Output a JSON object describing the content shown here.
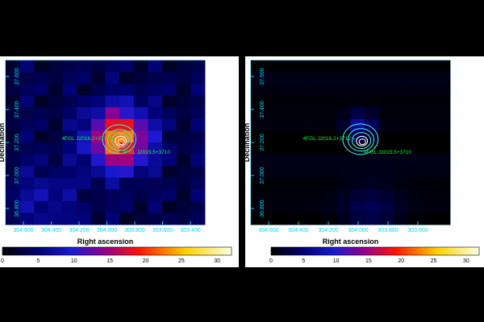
{
  "chart_data": [
    {
      "type": "heatmap",
      "panel": "left",
      "xlabel": "Right ascension",
      "ylabel": "Declination",
      "x_ticks": [
        "304.600",
        "304.400",
        "304.200",
        "304.000",
        "303.800",
        "303.600",
        "303.400"
      ],
      "y_ticks": [
        "37.600",
        "37.400",
        "37.200",
        "37.000",
        "36.800"
      ],
      "colorbar_ticks": [
        "0",
        "5",
        "10",
        "15",
        "20",
        "25",
        "30"
      ],
      "colorbar_range": [
        0,
        32
      ],
      "sources": [
        {
          "name": "4FGL J2016.2+3712",
          "marker": "+"
        },
        {
          "name": "4FGL J2015.5+3710",
          "marker": "x"
        }
      ]
    },
    {
      "type": "heatmap",
      "panel": "right",
      "xlabel": "Right ascension",
      "ylabel": "Declination",
      "x_ticks": [
        "304.600",
        "304.400",
        "304.200",
        "304.000",
        "303.800",
        "303.600"
      ],
      "y_ticks": [
        "37.600",
        "37.400",
        "37.200",
        "37.000",
        "36.800"
      ],
      "colorbar_ticks": [
        "0",
        "5",
        "10",
        "15",
        "20",
        "25",
        "30"
      ],
      "colorbar_range": [
        0,
        32
      ],
      "sources": [
        {
          "name": "4FGL J2016.2+3712",
          "marker": "+"
        },
        {
          "name": "4FGL J2015.5+3710",
          "marker": "x"
        }
      ]
    }
  ],
  "colors": {
    "contour": "#40e0e0",
    "source_label": "#00ff33",
    "tick": "#00d8ff"
  }
}
